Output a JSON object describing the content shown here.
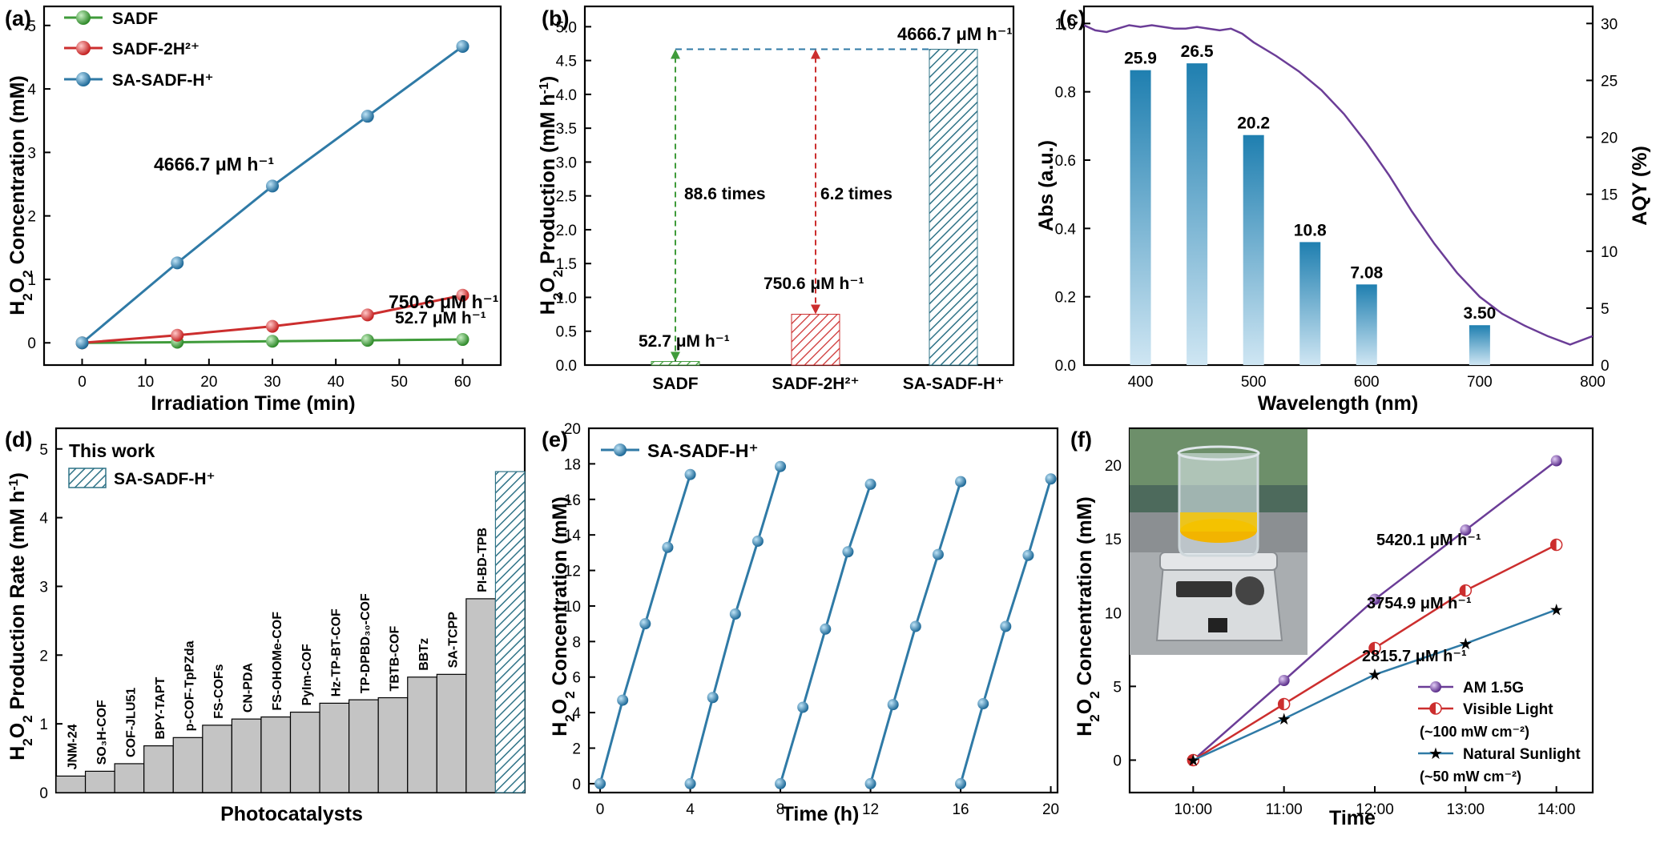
{
  "colors": {
    "green": "#3f9b3a",
    "red": "#cc2e2e",
    "blue": "#2f7aa6",
    "purple": "#6b3d97",
    "teal": "#4f9fbf",
    "bar_gray": "#c4c4c4",
    "hatch_teal": "#2f7387",
    "orange_red": "#e65a4d"
  },
  "chart_data": [
    {
      "panel": "(a)",
      "type": "line",
      "xlabel": "Irradiation Time (min)",
      "ylabel": "H2O2 Concentration (mM)",
      "xlim": [
        -6,
        66
      ],
      "ylim": [
        -0.35,
        5.3
      ],
      "xticks": [
        0,
        10,
        20,
        30,
        40,
        50,
        60
      ],
      "yticks": [
        0,
        1,
        2,
        3,
        4,
        5
      ],
      "series": [
        {
          "name": "SADF",
          "x": [
            0,
            15,
            30,
            45,
            60
          ],
          "y": [
            0,
            0.01,
            0.025,
            0.04,
            0.053
          ],
          "rate_label": "52.7 μM h⁻¹"
        },
        {
          "name": "SADF-2H²⁺",
          "x": [
            0,
            15,
            30,
            45,
            60
          ],
          "y": [
            0,
            0.12,
            0.26,
            0.44,
            0.75
          ],
          "rate_label": "750.6 μM h⁻¹"
        },
        {
          "name": "SA-SADF-H⁺",
          "x": [
            0,
            15,
            30,
            45,
            60
          ],
          "y": [
            0,
            1.26,
            2.47,
            3.57,
            4.67
          ],
          "rate_label": "4666.7 μM h⁻¹"
        }
      ],
      "legend": "top-left"
    },
    {
      "panel": "(b)",
      "type": "bar",
      "ylabel": "H2O2 Production (mM h⁻¹)",
      "ylim": [
        0,
        5.3
      ],
      "yticks": [
        0.0,
        0.5,
        1.0,
        1.5,
        2.0,
        2.5,
        3.0,
        3.5,
        4.0,
        4.5,
        5.0
      ],
      "categories": [
        "SADF",
        "SADF-2H²⁺",
        "SA-SADF-H⁺"
      ],
      "values": [
        0.0527,
        0.7506,
        4.6667
      ],
      "value_labels": [
        "52.7 μM h⁻¹",
        "750.6 μM h⁻¹",
        "4666.7 μM h⁻¹"
      ],
      "annotations": [
        "88.6 times",
        "6.2 times"
      ]
    },
    {
      "panel": "(c)",
      "type": "bar+line",
      "xlabel": "Wavelength (nm)",
      "ylabel": "Abs (a.u.)",
      "y2label": "AQY (%)",
      "xlim": [
        350,
        800
      ],
      "ylim": [
        0,
        1.05
      ],
      "y2lim": [
        0,
        31.5
      ],
      "xticks": [
        400,
        500,
        600,
        700,
        800
      ],
      "yticks": [
        0.0,
        0.2,
        0.4,
        0.6,
        0.8,
        1.0
      ],
      "y2ticks": [
        0,
        5,
        10,
        15,
        20,
        25,
        30
      ],
      "bars": {
        "x": [
          400,
          450,
          500,
          550,
          600,
          700
        ],
        "values": [
          25.9,
          26.5,
          20.2,
          10.8,
          7.08,
          3.5
        ],
        "labels": [
          "25.9",
          "26.5",
          "20.2",
          "10.8",
          "7.08",
          "3.50"
        ]
      },
      "absorbance": {
        "x": [
          350,
          360,
          370,
          380,
          390,
          400,
          410,
          420,
          430,
          440,
          450,
          460,
          470,
          480,
          490,
          500,
          520,
          540,
          560,
          580,
          600,
          620,
          640,
          660,
          680,
          700,
          720,
          740,
          760,
          780,
          800
        ],
        "y": [
          0.995,
          0.98,
          0.975,
          0.985,
          0.995,
          0.99,
          0.995,
          0.99,
          0.985,
          0.985,
          0.99,
          0.985,
          0.98,
          0.985,
          0.97,
          0.945,
          0.905,
          0.86,
          0.805,
          0.735,
          0.65,
          0.555,
          0.45,
          0.355,
          0.27,
          0.2,
          0.15,
          0.115,
          0.085,
          0.06,
          0.085
        ]
      }
    },
    {
      "panel": "(d)",
      "type": "bar",
      "xlabel": "Photocatalysts",
      "ylabel": "H2O2 Production Rate (mM h⁻¹)",
      "ylim": [
        0,
        5.3
      ],
      "yticks": [
        0,
        1,
        2,
        3,
        4,
        5
      ],
      "categories": [
        "JNM-24",
        "SO₃H-COF",
        "COF-JLU51",
        "BPY-TAPT",
        "p-COF-TpPZda",
        "FS-COFs",
        "CN-PDA",
        "FS-OHOMe-COF",
        "PyIm-COF",
        "Hz-TP-BT-COF",
        "TP-DPBD₃₀-COF",
        "TBTB-COF",
        "BBTz",
        "SA-TCPP",
        "PI-BD-TPB",
        "SA-SADF-H⁺"
      ],
      "values": [
        0.24,
        0.31,
        0.42,
        0.68,
        0.8,
        0.98,
        1.07,
        1.1,
        1.17,
        1.3,
        1.35,
        1.38,
        1.68,
        1.72,
        2.82,
        4.67
      ],
      "legend_title": "This work",
      "legend_entry": "SA-SADF-H⁺"
    },
    {
      "panel": "(e)",
      "type": "line",
      "xlabel": "Time (h)",
      "ylabel": "H2O2 Concentration (mM)",
      "xlim": [
        -0.5,
        20.3
      ],
      "ylim": [
        -0.5,
        20
      ],
      "xticks": [
        0,
        4,
        8,
        12,
        16,
        20
      ],
      "yticks": [
        0,
        2,
        4,
        6,
        8,
        10,
        12,
        14,
        16,
        18,
        20
      ],
      "series": [
        {
          "name": "SA-SADF-H⁺",
          "cycles": [
            {
              "x": [
                0,
                1,
                2,
                3,
                4
              ],
              "y": [
                0,
                4.7,
                9.0,
                13.3,
                17.4
              ]
            },
            {
              "x": [
                4,
                5,
                6,
                7,
                8
              ],
              "y": [
                0,
                4.85,
                9.55,
                13.65,
                17.85
              ]
            },
            {
              "x": [
                8,
                9,
                10,
                11,
                12
              ],
              "y": [
                0,
                4.3,
                8.7,
                13.05,
                16.85
              ]
            },
            {
              "x": [
                12,
                13,
                14,
                15,
                16
              ],
              "y": [
                0,
                4.45,
                8.85,
                12.9,
                17.0
              ]
            },
            {
              "x": [
                16,
                17,
                18,
                19,
                20
              ],
              "y": [
                0,
                4.5,
                8.85,
                12.85,
                17.15
              ]
            }
          ]
        }
      ]
    },
    {
      "panel": "(f)",
      "type": "line",
      "xlabel": "Time",
      "ylabel": "H2O2 Concentration (mM)",
      "categories": [
        "10:00",
        "11:00",
        "12:00",
        "13:00",
        "14:00"
      ],
      "ylim": [
        -2.2,
        22.5
      ],
      "yticks": [
        0,
        5,
        10,
        15,
        20
      ],
      "series": [
        {
          "name": "AM 1.5G",
          "y": [
            0,
            5.4,
            10.9,
            15.6,
            20.3
          ],
          "rate_label": "5420.1 μM h⁻¹"
        },
        {
          "name": "Visible Light",
          "note": "(~100 mW cm⁻²)",
          "y": [
            0,
            3.8,
            7.6,
            11.5,
            14.6
          ],
          "rate_label": "3754.9 μM h⁻¹"
        },
        {
          "name": "Natural Sunlight",
          "note": "(~50 mW cm⁻²)",
          "y": [
            0,
            2.8,
            5.8,
            7.9,
            10.2
          ],
          "rate_label": "2815.7 μM h⁻¹"
        }
      ],
      "legend": "bottom-right",
      "inset": "photo of reaction beaker on stirrer"
    }
  ]
}
